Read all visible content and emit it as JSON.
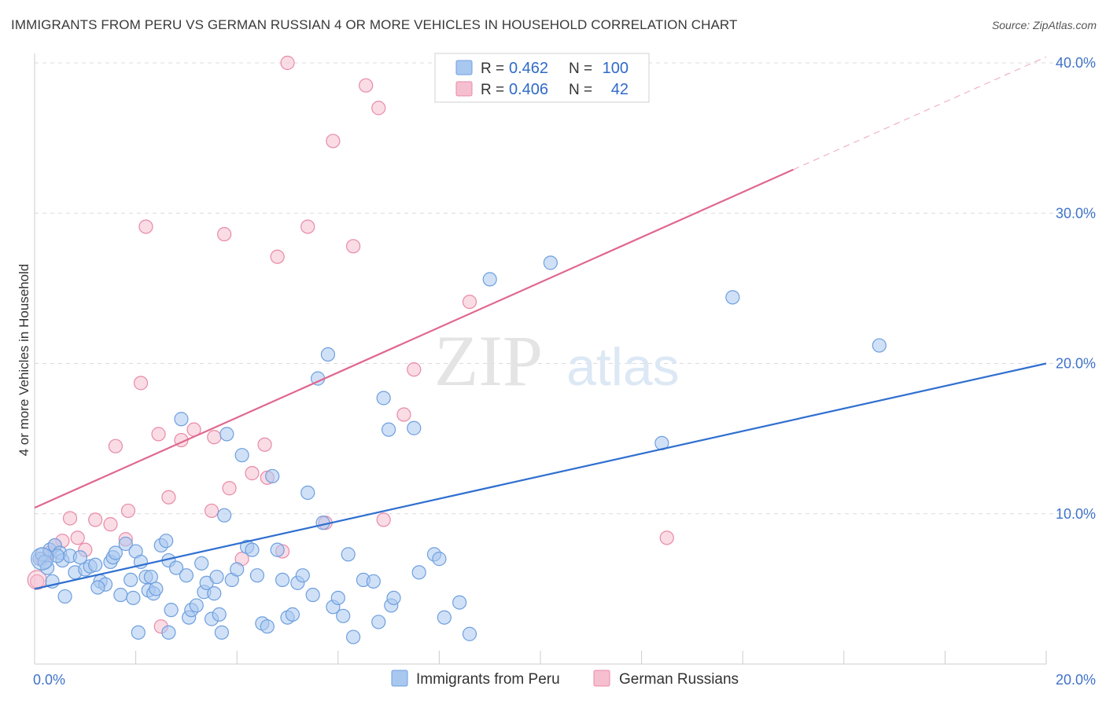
{
  "title": "IMMIGRANTS FROM PERU VS GERMAN RUSSIAN 4 OR MORE VEHICLES IN HOUSEHOLD CORRELATION CHART",
  "source": "Source: ZipAtlas.com",
  "watermark": {
    "zip": "ZIP",
    "atlas": "atlas"
  },
  "colors": {
    "blue_fill": "#a9c8f0",
    "blue_stroke": "#6e9fde",
    "blue_line": "#2f6fd0",
    "pink_fill": "#f6bfd0",
    "pink_stroke": "#e88aa8",
    "pink_line": "#e0678f",
    "grid": "#dcdcdc",
    "tick_text": "#3f73c9"
  },
  "legend": {
    "rows": [
      {
        "r_label": "R =",
        "r_value": "0.462",
        "n_label": "N =",
        "n_value": "100"
      },
      {
        "r_label": "R =",
        "r_value": "0.406",
        "n_label": "N =",
        "n_value": "42"
      }
    ]
  },
  "chart_data": {
    "type": "scatter",
    "title": "IMMIGRANTS FROM PERU VS GERMAN RUSSIAN 4 OR MORE VEHICLES IN HOUSEHOLD CORRELATION CHART",
    "xlabel": "",
    "ylabel": "4 or more Vehicles in Household",
    "xlim": [
      0,
      20
    ],
    "ylim": [
      0,
      40
    ],
    "x_tick_labels": [
      {
        "value": 0,
        "label": "0.0%"
      },
      {
        "value": 20,
        "label": "20.0%"
      }
    ],
    "y_tick_labels": [
      {
        "value": 10,
        "label": "10.0%"
      },
      {
        "value": 20,
        "label": "20.0%"
      },
      {
        "value": 30,
        "label": "30.0%"
      },
      {
        "value": 40,
        "label": "40.0%"
      }
    ],
    "series": [
      {
        "name": "Immigrants from Peru",
        "color": "#a9c8f0",
        "trendline": {
          "x": [
            0,
            20
          ],
          "y": [
            5.0,
            20.0
          ],
          "dashed_after": null
        },
        "points": [
          [
            0.1,
            7.0
          ],
          [
            0.15,
            7.3
          ],
          [
            0.2,
            6.8
          ],
          [
            0.3,
            7.6
          ],
          [
            0.35,
            5.5
          ],
          [
            0.4,
            7.9
          ],
          [
            0.5,
            7.4
          ],
          [
            0.55,
            6.9
          ],
          [
            0.7,
            7.2
          ],
          [
            0.8,
            6.1
          ],
          [
            0.9,
            7.1
          ],
          [
            1.0,
            6.3
          ],
          [
            1.1,
            6.5
          ],
          [
            1.2,
            6.6
          ],
          [
            1.3,
            5.5
          ],
          [
            1.4,
            5.3
          ],
          [
            1.5,
            6.8
          ],
          [
            1.55,
            7.1
          ],
          [
            1.6,
            7.4
          ],
          [
            1.7,
            4.6
          ],
          [
            1.8,
            8.0
          ],
          [
            1.9,
            5.6
          ],
          [
            1.95,
            4.4
          ],
          [
            2.0,
            7.5
          ],
          [
            2.1,
            6.8
          ],
          [
            2.2,
            5.8
          ],
          [
            2.25,
            4.9
          ],
          [
            2.3,
            5.8
          ],
          [
            2.35,
            4.7
          ],
          [
            2.4,
            5.0
          ],
          [
            2.5,
            7.9
          ],
          [
            2.6,
            8.2
          ],
          [
            2.65,
            6.9
          ],
          [
            2.7,
            3.6
          ],
          [
            2.8,
            6.4
          ],
          [
            2.9,
            16.3
          ],
          [
            3.0,
            5.9
          ],
          [
            3.05,
            3.1
          ],
          [
            3.1,
            3.6
          ],
          [
            3.2,
            3.9
          ],
          [
            3.3,
            6.7
          ],
          [
            3.35,
            4.8
          ],
          [
            3.4,
            5.4
          ],
          [
            3.5,
            3.0
          ],
          [
            3.55,
            4.7
          ],
          [
            3.6,
            5.8
          ],
          [
            3.7,
            2.1
          ],
          [
            3.75,
            9.9
          ],
          [
            3.8,
            15.3
          ],
          [
            3.9,
            5.6
          ],
          [
            4.0,
            6.3
          ],
          [
            4.1,
            13.9
          ],
          [
            4.2,
            7.8
          ],
          [
            4.3,
            7.6
          ],
          [
            4.4,
            5.9
          ],
          [
            4.5,
            2.7
          ],
          [
            4.6,
            2.5
          ],
          [
            4.7,
            12.5
          ],
          [
            4.8,
            7.6
          ],
          [
            4.9,
            5.6
          ],
          [
            5.0,
            3.1
          ],
          [
            5.1,
            3.3
          ],
          [
            5.2,
            5.4
          ],
          [
            5.3,
            5.9
          ],
          [
            5.4,
            11.4
          ],
          [
            5.5,
            4.6
          ],
          [
            5.6,
            19.0
          ],
          [
            5.7,
            9.4
          ],
          [
            5.8,
            20.6
          ],
          [
            5.9,
            3.8
          ],
          [
            6.0,
            4.4
          ],
          [
            6.1,
            3.2
          ],
          [
            6.2,
            7.3
          ],
          [
            6.3,
            1.8
          ],
          [
            6.5,
            5.6
          ],
          [
            6.7,
            5.5
          ],
          [
            6.8,
            2.8
          ],
          [
            6.9,
            17.7
          ],
          [
            7.0,
            15.6
          ],
          [
            7.05,
            3.9
          ],
          [
            7.1,
            4.4
          ],
          [
            7.5,
            15.7
          ],
          [
            7.6,
            6.1
          ],
          [
            7.9,
            7.3
          ],
          [
            8.0,
            7.0
          ],
          [
            8.1,
            3.1
          ],
          [
            8.4,
            4.1
          ],
          [
            8.6,
            2.0
          ],
          [
            9.0,
            25.6
          ],
          [
            10.2,
            26.7
          ],
          [
            12.4,
            14.7
          ],
          [
            13.8,
            24.4
          ],
          [
            16.7,
            21.2
          ],
          [
            0.25,
            6.4
          ],
          [
            0.6,
            4.5
          ],
          [
            0.45,
            7.2
          ],
          [
            1.25,
            5.1
          ],
          [
            2.05,
            2.1
          ],
          [
            2.65,
            2.1
          ],
          [
            3.65,
            3.3
          ]
        ]
      },
      {
        "name": "German Russians",
        "color": "#f6bfd0",
        "trendline": {
          "x": [
            0,
            15
          ],
          "y": [
            10.4,
            32.9
          ],
          "dashed_after": {
            "x": [
              15,
              20
            ],
            "y": [
              32.9,
              40.4
            ]
          }
        },
        "points": [
          [
            0.15,
            7.0
          ],
          [
            0.3,
            7.4
          ],
          [
            0.55,
            8.2
          ],
          [
            0.7,
            9.7
          ],
          [
            0.85,
            8.4
          ],
          [
            1.2,
            9.6
          ],
          [
            1.5,
            9.3
          ],
          [
            1.8,
            8.3
          ],
          [
            1.85,
            10.2
          ],
          [
            2.1,
            18.7
          ],
          [
            2.45,
            15.3
          ],
          [
            2.65,
            11.1
          ],
          [
            2.9,
            14.9
          ],
          [
            3.15,
            15.6
          ],
          [
            3.5,
            10.2
          ],
          [
            3.55,
            15.1
          ],
          [
            3.85,
            11.7
          ],
          [
            4.1,
            7.0
          ],
          [
            4.3,
            12.7
          ],
          [
            4.55,
            14.6
          ],
          [
            4.6,
            12.4
          ],
          [
            4.8,
            27.1
          ],
          [
            4.9,
            7.5
          ],
          [
            5.0,
            40.0
          ],
          [
            5.4,
            29.1
          ],
          [
            5.75,
            9.4
          ],
          [
            5.9,
            34.8
          ],
          [
            6.3,
            27.8
          ],
          [
            6.55,
            38.5
          ],
          [
            6.8,
            37.0
          ],
          [
            6.9,
            9.6
          ],
          [
            7.3,
            16.6
          ],
          [
            7.5,
            19.6
          ],
          [
            8.6,
            24.1
          ],
          [
            12.5,
            8.4
          ],
          [
            3.75,
            28.6
          ],
          [
            2.2,
            29.1
          ],
          [
            1.0,
            7.6
          ],
          [
            0.4,
            7.9
          ],
          [
            2.5,
            2.5
          ],
          [
            1.6,
            14.5
          ],
          [
            0.05,
            5.5
          ]
        ]
      }
    ]
  },
  "legend_bottom": [
    {
      "label": "Immigrants from Peru"
    },
    {
      "label": "German Russians"
    }
  ]
}
